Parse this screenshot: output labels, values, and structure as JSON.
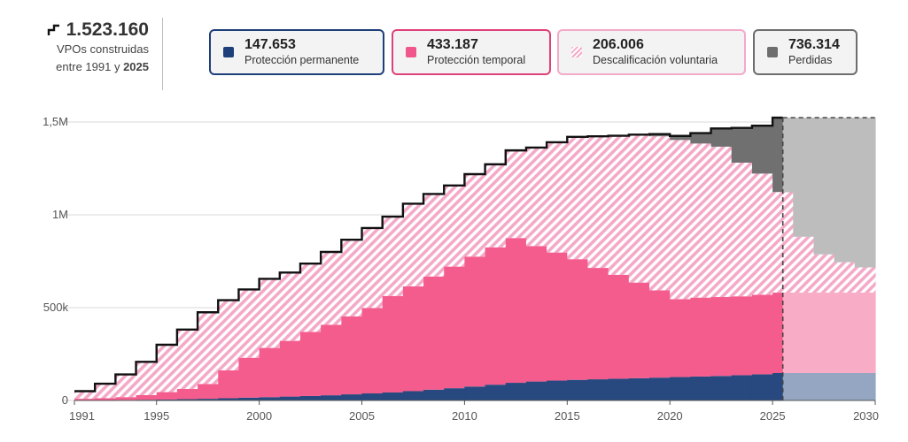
{
  "summary": {
    "total": "1.523.160",
    "line1": "VPOs construidas",
    "line2_prefix": "entre 1991 y",
    "line2_year": "2025",
    "icon": "step-line-icon"
  },
  "legend": [
    {
      "value": "147.653",
      "label": "Protección permanente",
      "color": "#1f3f7a",
      "border": "#1f3f7a",
      "pattern": false
    },
    {
      "value": "433.187",
      "label": "Protección temporal",
      "color": "#f0568c",
      "border": "#e0407a",
      "pattern": false
    },
    {
      "value": "206.006",
      "label": "Descalificación voluntaria",
      "color": "#f4a9c8",
      "border": "#f4a9c8",
      "pattern": true
    },
    {
      "value": "736.314",
      "label": "Perdidas",
      "color": "#6e6e6e",
      "border": "#6e6e6e",
      "pattern": false
    }
  ],
  "colors": {
    "permanente": "#27497f",
    "temporal": "#f55c8e",
    "descalificada": "#f4a9c8",
    "perdidas": "#707070",
    "proj_permanente": "#95a6c2",
    "proj_temporal": "#f9acc6",
    "proj_perdidas": "#bdbdbd",
    "total_line": "#111111",
    "grid": "#d9d9d9"
  },
  "chart_data": {
    "type": "area",
    "step": true,
    "x_start": 1991,
    "x_end": 2030,
    "x_ticks": [
      1991,
      1995,
      2000,
      2005,
      2010,
      2015,
      2020,
      2025,
      2030
    ],
    "y_ticks": [
      {
        "value": 0,
        "label": "0"
      },
      {
        "value": 500000,
        "label": "500k"
      },
      {
        "value": 1000000,
        "label": "1M"
      },
      {
        "value": 1500000,
        "label": "1,5M"
      }
    ],
    "ylim": [
      0,
      1500000
    ],
    "projection_start": 2025.5,
    "years": [
      1991,
      1992,
      1993,
      1994,
      1995,
      1996,
      1997,
      1998,
      1999,
      2000,
      2001,
      2002,
      2003,
      2004,
      2005,
      2006,
      2007,
      2008,
      2009,
      2010,
      2011,
      2012,
      2013,
      2014,
      2015,
      2016,
      2017,
      2018,
      2019,
      2020,
      2021,
      2022,
      2023,
      2024,
      2025,
      2026,
      2027,
      2028,
      2029
    ],
    "series": [
      {
        "name": "Protección permanente",
        "key": "permanente",
        "values": [
          1000,
          2000,
          3000,
          4000,
          5000,
          7000,
          9000,
          12000,
          15000,
          18000,
          21000,
          24000,
          28000,
          33000,
          38000,
          43000,
          50000,
          58000,
          66000,
          75000,
          85000,
          95000,
          102000,
          107000,
          111000,
          114000,
          117000,
          120000,
          123000,
          126000,
          129000,
          132000,
          136000,
          141000,
          147653,
          147653,
          147653,
          147653,
          147653
        ]
      },
      {
        "name": "Protección temporal",
        "key": "temporal",
        "values": [
          8000,
          10000,
          15000,
          25000,
          40000,
          55000,
          80000,
          150000,
          215000,
          265000,
          300000,
          345000,
          380000,
          420000,
          460000,
          520000,
          565000,
          610000,
          655000,
          700000,
          740000,
          780000,
          730000,
          690000,
          650000,
          600000,
          560000,
          515000,
          470000,
          420000,
          425000,
          425000,
          425000,
          428000,
          433187,
          433187,
          433187,
          433187,
          433187
        ]
      },
      {
        "name": "Descalificación voluntaria",
        "key": "descalificada",
        "values": [
          41000,
          78000,
          122000,
          179000,
          255000,
          320000,
          386000,
          378000,
          368000,
          372000,
          368000,
          368000,
          392000,
          413000,
          431000,
          427000,
          445000,
          444000,
          437000,
          444000,
          447000,
          472000,
          530000,
          594000,
          659000,
          709000,
          748000,
          792000,
          830000,
          857000,
          830000,
          810000,
          720000,
          653000,
          542006,
          301006,
          206006,
          164006,
          136006
        ]
      },
      {
        "name": "Perdidas",
        "key": "perdidas",
        "values": [
          0,
          0,
          0,
          0,
          0,
          0,
          0,
          0,
          0,
          0,
          0,
          0,
          0,
          0,
          0,
          0,
          0,
          0,
          0,
          0,
          0,
          0,
          0,
          0,
          0,
          0,
          1000,
          5000,
          12000,
          22000,
          56000,
          98000,
          187000,
          258000,
          400314,
          641314,
          736314,
          778314,
          806314
        ]
      }
    ]
  }
}
